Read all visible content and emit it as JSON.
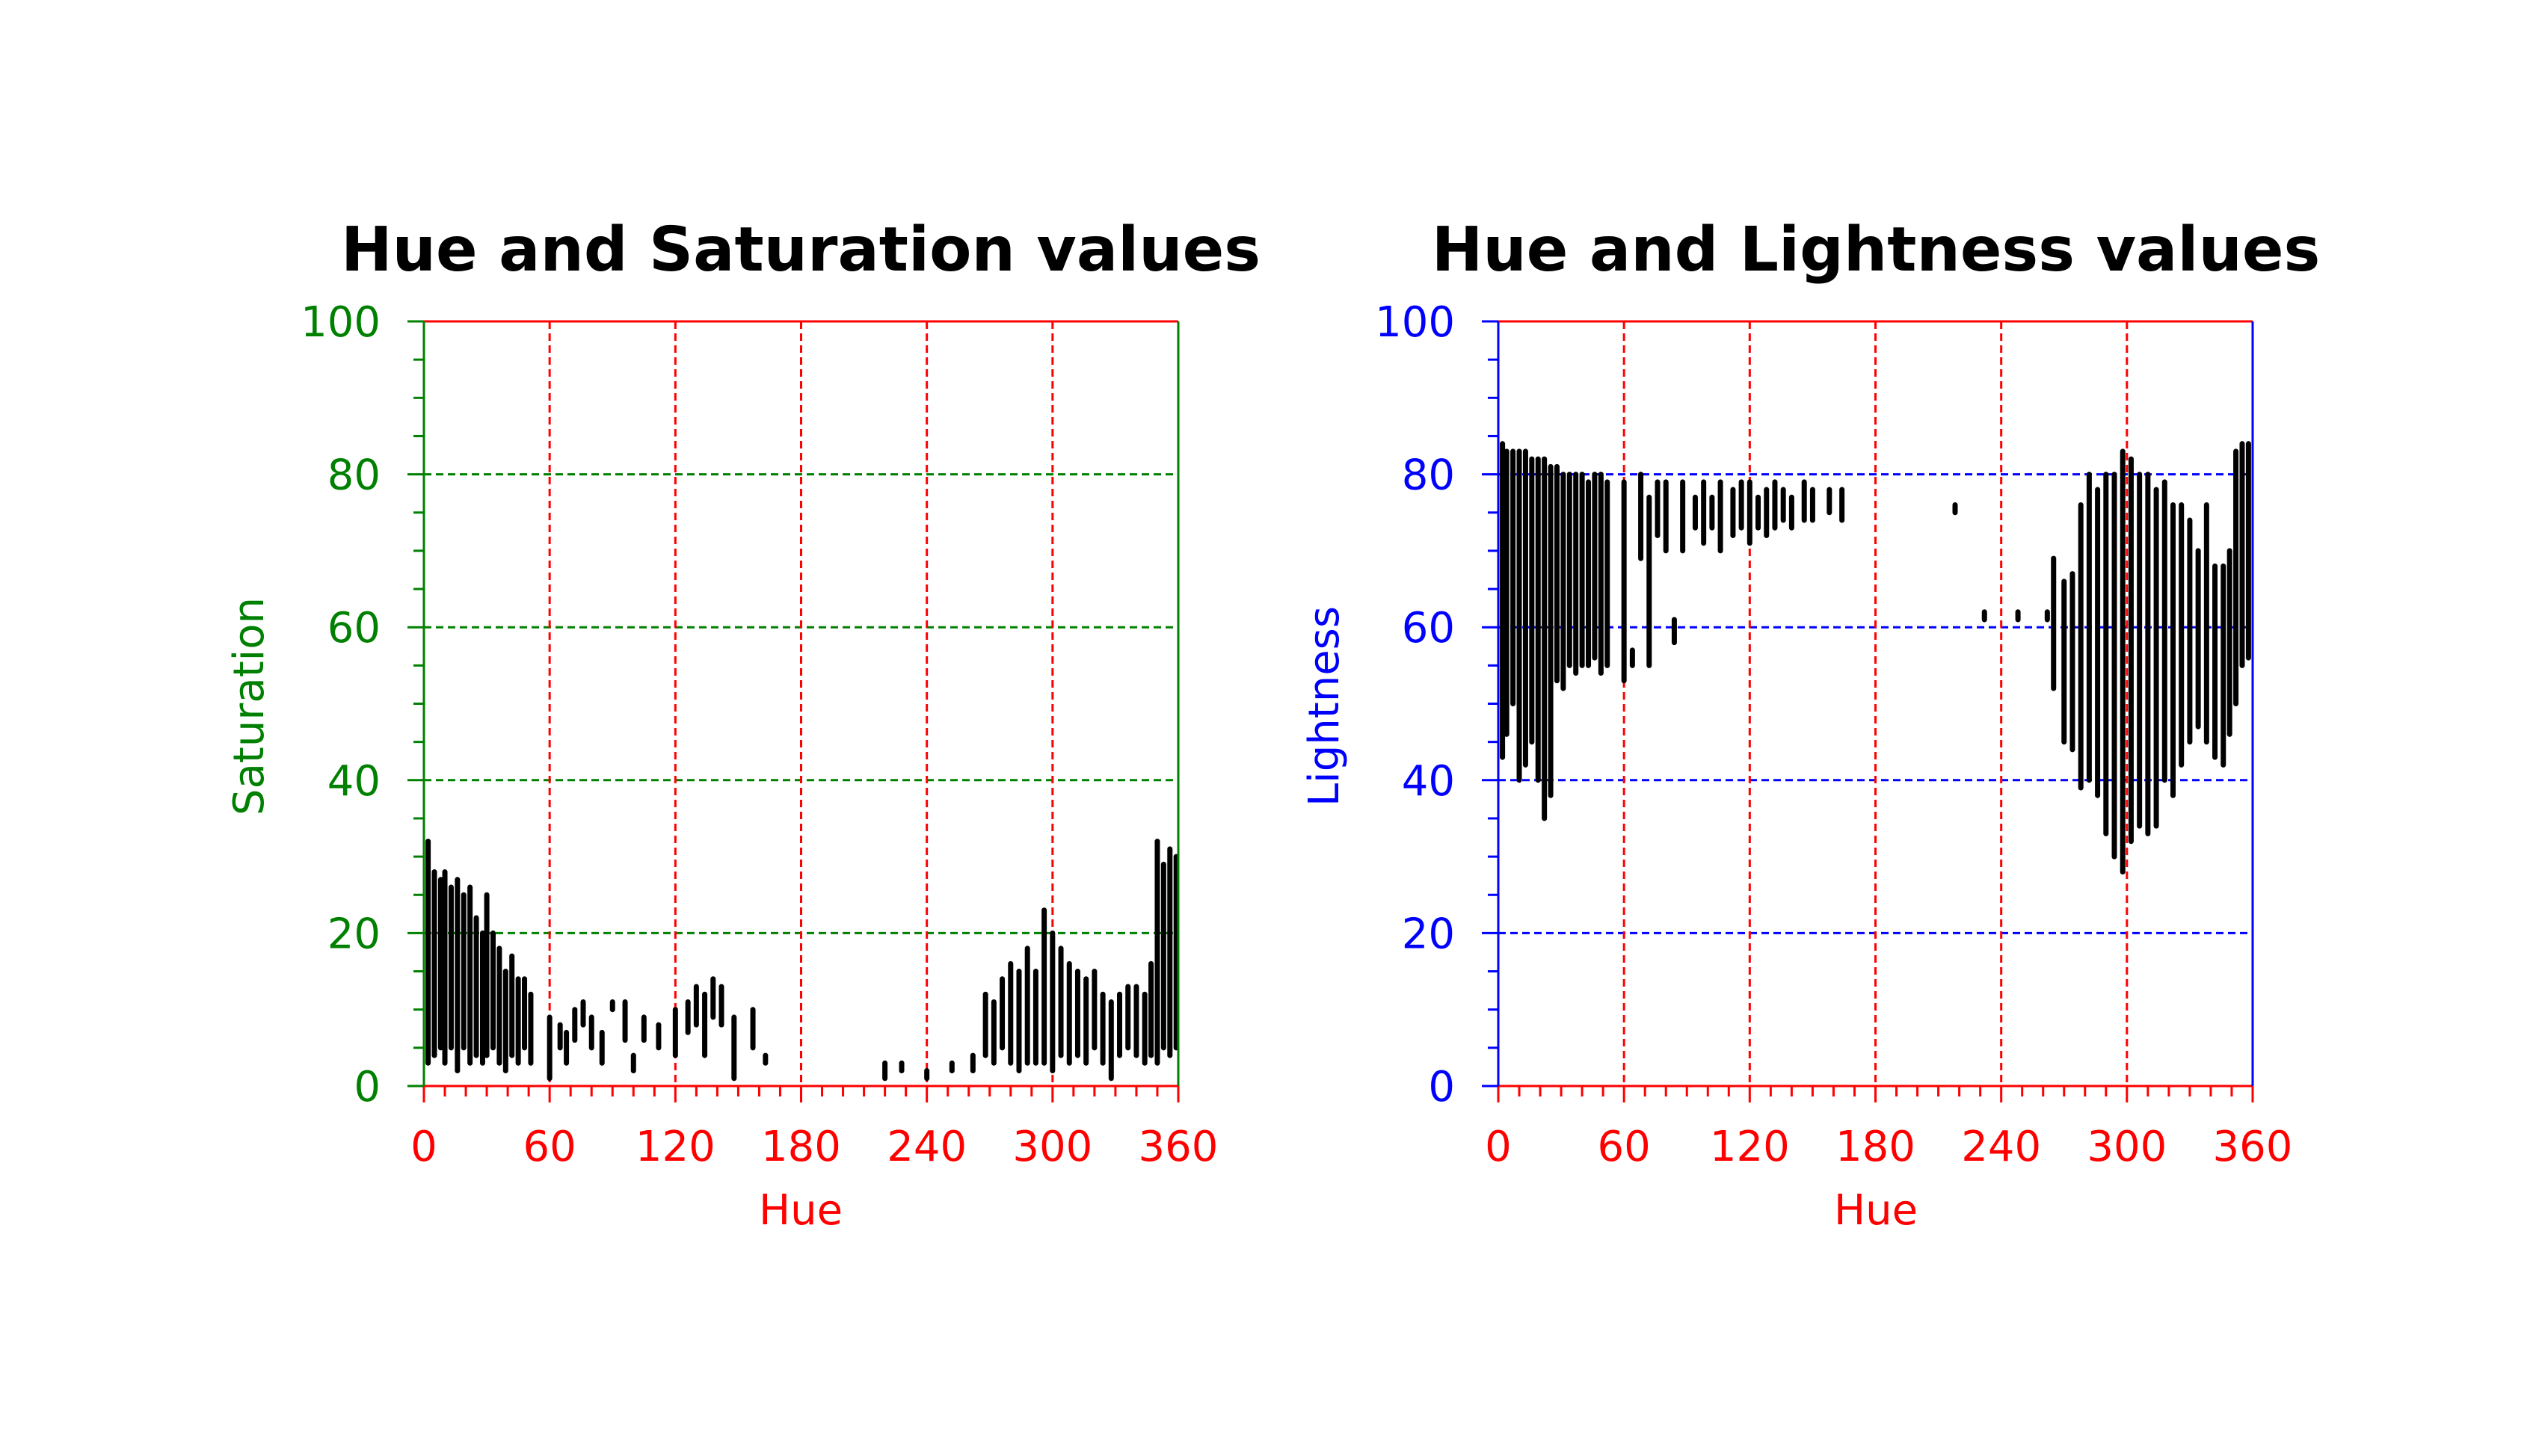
{
  "chart_data": [
    {
      "type": "scatter",
      "title": "Hue and Saturation values",
      "xlabel": "Hue",
      "ylabel": "Saturation",
      "xlim": [
        0,
        360
      ],
      "ylim": [
        0,
        100
      ],
      "xticks": [
        "0",
        "60",
        "120",
        "180",
        "240",
        "300",
        "360"
      ],
      "yticks": [
        "0",
        "20",
        "40",
        "60",
        "80",
        "100"
      ],
      "x_color": "#ff0000",
      "y_color": "#008000",
      "grid": "dashed",
      "point_color": "#000000",
      "series": [
        {
          "columns": [
            {
              "x": 2,
              "y": [
                3,
                32
              ]
            },
            {
              "x": 5,
              "y": [
                4,
                28
              ]
            },
            {
              "x": 8,
              "y": [
                5,
                27
              ]
            },
            {
              "x": 10,
              "y": [
                3,
                28
              ]
            },
            {
              "x": 13,
              "y": [
                5,
                26
              ]
            },
            {
              "x": 16,
              "y": [
                2,
                27
              ]
            },
            {
              "x": 19,
              "y": [
                5,
                25
              ]
            },
            {
              "x": 22,
              "y": [
                3,
                26
              ]
            },
            {
              "x": 25,
              "y": [
                4,
                22
              ]
            },
            {
              "x": 28,
              "y": [
                3,
                20
              ]
            },
            {
              "x": 30,
              "y": [
                4,
                25
              ]
            },
            {
              "x": 33,
              "y": [
                5,
                20
              ]
            },
            {
              "x": 36,
              "y": [
                3,
                18
              ]
            },
            {
              "x": 39,
              "y": [
                2,
                15
              ]
            },
            {
              "x": 42,
              "y": [
                4,
                17
              ]
            },
            {
              "x": 45,
              "y": [
                3,
                14
              ]
            },
            {
              "x": 48,
              "y": [
                5,
                14
              ]
            },
            {
              "x": 51,
              "y": [
                3,
                12
              ]
            },
            {
              "x": 60,
              "y": [
                1,
                9
              ]
            },
            {
              "x": 65,
              "y": [
                5,
                8
              ]
            },
            {
              "x": 68,
              "y": [
                3,
                7
              ]
            },
            {
              "x": 72,
              "y": [
                6,
                10
              ]
            },
            {
              "x": 76,
              "y": [
                8,
                11
              ]
            },
            {
              "x": 80,
              "y": [
                5,
                9
              ]
            },
            {
              "x": 85,
              "y": [
                3,
                7
              ]
            },
            {
              "x": 90,
              "y": [
                10,
                11
              ]
            },
            {
              "x": 96,
              "y": [
                6,
                11
              ]
            },
            {
              "x": 100,
              "y": [
                2,
                4
              ]
            },
            {
              "x": 105,
              "y": [
                6,
                9
              ]
            },
            {
              "x": 112,
              "y": [
                5,
                8
              ]
            },
            {
              "x": 120,
              "y": [
                4,
                10
              ]
            },
            {
              "x": 126,
              "y": [
                7,
                11
              ]
            },
            {
              "x": 130,
              "y": [
                8,
                13
              ]
            },
            {
              "x": 134,
              "y": [
                4,
                12
              ]
            },
            {
              "x": 138,
              "y": [
                9,
                14
              ]
            },
            {
              "x": 142,
              "y": [
                8,
                13
              ]
            },
            {
              "x": 148,
              "y": [
                1,
                9
              ]
            },
            {
              "x": 157,
              "y": [
                5,
                10
              ]
            },
            {
              "x": 163,
              "y": [
                3,
                4
              ]
            },
            {
              "x": 220,
              "y": [
                1,
                3
              ]
            },
            {
              "x": 228,
              "y": [
                2,
                3
              ]
            },
            {
              "x": 240,
              "y": [
                1,
                2
              ]
            },
            {
              "x": 252,
              "y": [
                2,
                3
              ]
            },
            {
              "x": 262,
              "y": [
                2,
                4
              ]
            },
            {
              "x": 268,
              "y": [
                4,
                12
              ]
            },
            {
              "x": 272,
              "y": [
                3,
                11
              ]
            },
            {
              "x": 276,
              "y": [
                5,
                14
              ]
            },
            {
              "x": 280,
              "y": [
                3,
                16
              ]
            },
            {
              "x": 284,
              "y": [
                2,
                15
              ]
            },
            {
              "x": 288,
              "y": [
                3,
                18
              ]
            },
            {
              "x": 292,
              "y": [
                3,
                15
              ]
            },
            {
              "x": 296,
              "y": [
                3,
                23
              ]
            },
            {
              "x": 300,
              "y": [
                2,
                20
              ]
            },
            {
              "x": 304,
              "y": [
                4,
                18
              ]
            },
            {
              "x": 308,
              "y": [
                3,
                16
              ]
            },
            {
              "x": 312,
              "y": [
                4,
                15
              ]
            },
            {
              "x": 316,
              "y": [
                3,
                14
              ]
            },
            {
              "x": 320,
              "y": [
                5,
                15
              ]
            },
            {
              "x": 324,
              "y": [
                3,
                12
              ]
            },
            {
              "x": 328,
              "y": [
                1,
                11
              ]
            },
            {
              "x": 332,
              "y": [
                4,
                12
              ]
            },
            {
              "x": 336,
              "y": [
                5,
                13
              ]
            },
            {
              "x": 340,
              "y": [
                4,
                13
              ]
            },
            {
              "x": 344,
              "y": [
                3,
                12
              ]
            },
            {
              "x": 347,
              "y": [
                4,
                16
              ]
            },
            {
              "x": 350,
              "y": [
                3,
                32
              ]
            },
            {
              "x": 353,
              "y": [
                5,
                29
              ]
            },
            {
              "x": 356,
              "y": [
                4,
                31
              ]
            },
            {
              "x": 359,
              "y": [
                5,
                30
              ]
            }
          ]
        }
      ]
    },
    {
      "type": "scatter",
      "title": "Hue and Lightness values",
      "xlabel": "Hue",
      "ylabel": "Lightness",
      "xlim": [
        0,
        360
      ],
      "ylim": [
        0,
        100
      ],
      "xticks": [
        "0",
        "60",
        "120",
        "180",
        "240",
        "300",
        "360"
      ],
      "yticks": [
        "0",
        "20",
        "40",
        "60",
        "80",
        "100"
      ],
      "x_color": "#ff0000",
      "y_color": "#0000ff",
      "grid": "dashed",
      "point_color": "#000000",
      "series": [
        {
          "columns": [
            {
              "x": 2,
              "y": [
                43,
                84
              ]
            },
            {
              "x": 4,
              "y": [
                46,
                83
              ]
            },
            {
              "x": 7,
              "y": [
                50,
                83
              ]
            },
            {
              "x": 10,
              "y": [
                40,
                83
              ]
            },
            {
              "x": 13,
              "y": [
                42,
                83
              ]
            },
            {
              "x": 16,
              "y": [
                45,
                82
              ]
            },
            {
              "x": 19,
              "y": [
                40,
                82
              ]
            },
            {
              "x": 22,
              "y": [
                35,
                82
              ]
            },
            {
              "x": 25,
              "y": [
                38,
                81
              ]
            },
            {
              "x": 28,
              "y": [
                53,
                81
              ]
            },
            {
              "x": 31,
              "y": [
                52,
                80
              ]
            },
            {
              "x": 34,
              "y": [
                55,
                80
              ]
            },
            {
              "x": 37,
              "y": [
                54,
                80
              ]
            },
            {
              "x": 40,
              "y": [
                55,
                80
              ]
            },
            {
              "x": 43,
              "y": [
                55,
                79
              ]
            },
            {
              "x": 46,
              "y": [
                56,
                80
              ]
            },
            {
              "x": 49,
              "y": [
                54,
                80
              ]
            },
            {
              "x": 52,
              "y": [
                55,
                79
              ]
            },
            {
              "x": 60,
              "y": [
                53,
                79
              ]
            },
            {
              "x": 64,
              "y": [
                55,
                57
              ]
            },
            {
              "x": 68,
              "y": [
                69,
                80
              ]
            },
            {
              "x": 72,
              "y": [
                55,
                77
              ]
            },
            {
              "x": 76,
              "y": [
                72,
                79
              ]
            },
            {
              "x": 80,
              "y": [
                70,
                79
              ]
            },
            {
              "x": 84,
              "y": [
                58,
                61
              ]
            },
            {
              "x": 88,
              "y": [
                70,
                79
              ]
            },
            {
              "x": 94,
              "y": [
                73,
                77
              ]
            },
            {
              "x": 98,
              "y": [
                71,
                79
              ]
            },
            {
              "x": 102,
              "y": [
                73,
                77
              ]
            },
            {
              "x": 106,
              "y": [
                70,
                79
              ]
            },
            {
              "x": 112,
              "y": [
                72,
                78
              ]
            },
            {
              "x": 116,
              "y": [
                73,
                79
              ]
            },
            {
              "x": 120,
              "y": [
                71,
                79
              ]
            },
            {
              "x": 124,
              "y": [
                73,
                77
              ]
            },
            {
              "x": 128,
              "y": [
                72,
                78
              ]
            },
            {
              "x": 132,
              "y": [
                73,
                79
              ]
            },
            {
              "x": 136,
              "y": [
                74,
                78
              ]
            },
            {
              "x": 140,
              "y": [
                73,
                77
              ]
            },
            {
              "x": 146,
              "y": [
                74,
                79
              ]
            },
            {
              "x": 150,
              "y": [
                74,
                78
              ]
            },
            {
              "x": 158,
              "y": [
                75,
                78
              ]
            },
            {
              "x": 164,
              "y": [
                74,
                78
              ]
            },
            {
              "x": 218,
              "y": [
                75,
                76
              ]
            },
            {
              "x": 232,
              "y": [
                61,
                62
              ]
            },
            {
              "x": 248,
              "y": [
                61,
                62
              ]
            },
            {
              "x": 262,
              "y": [
                61,
                62
              ]
            },
            {
              "x": 265,
              "y": [
                52,
                69
              ]
            },
            {
              "x": 270,
              "y": [
                45,
                66
              ]
            },
            {
              "x": 274,
              "y": [
                44,
                67
              ]
            },
            {
              "x": 278,
              "y": [
                39,
                76
              ]
            },
            {
              "x": 282,
              "y": [
                40,
                80
              ]
            },
            {
              "x": 286,
              "y": [
                38,
                78
              ]
            },
            {
              "x": 290,
              "y": [
                33,
                80
              ]
            },
            {
              "x": 294,
              "y": [
                30,
                80
              ]
            },
            {
              "x": 298,
              "y": [
                28,
                83
              ]
            },
            {
              "x": 302,
              "y": [
                32,
                82
              ]
            },
            {
              "x": 306,
              "y": [
                34,
                80
              ]
            },
            {
              "x": 310,
              "y": [
                33,
                80
              ]
            },
            {
              "x": 314,
              "y": [
                34,
                78
              ]
            },
            {
              "x": 318,
              "y": [
                40,
                79
              ]
            },
            {
              "x": 322,
              "y": [
                38,
                76
              ]
            },
            {
              "x": 326,
              "y": [
                42,
                76
              ]
            },
            {
              "x": 330,
              "y": [
                45,
                74
              ]
            },
            {
              "x": 334,
              "y": [
                47,
                70
              ]
            },
            {
              "x": 338,
              "y": [
                45,
                76
              ]
            },
            {
              "x": 342,
              "y": [
                43,
                68
              ]
            },
            {
              "x": 346,
              "y": [
                42,
                68
              ]
            },
            {
              "x": 349,
              "y": [
                46,
                70
              ]
            },
            {
              "x": 352,
              "y": [
                50,
                83
              ]
            },
            {
              "x": 355,
              "y": [
                55,
                84
              ]
            },
            {
              "x": 358,
              "y": [
                56,
                84
              ]
            }
          ]
        }
      ]
    }
  ]
}
